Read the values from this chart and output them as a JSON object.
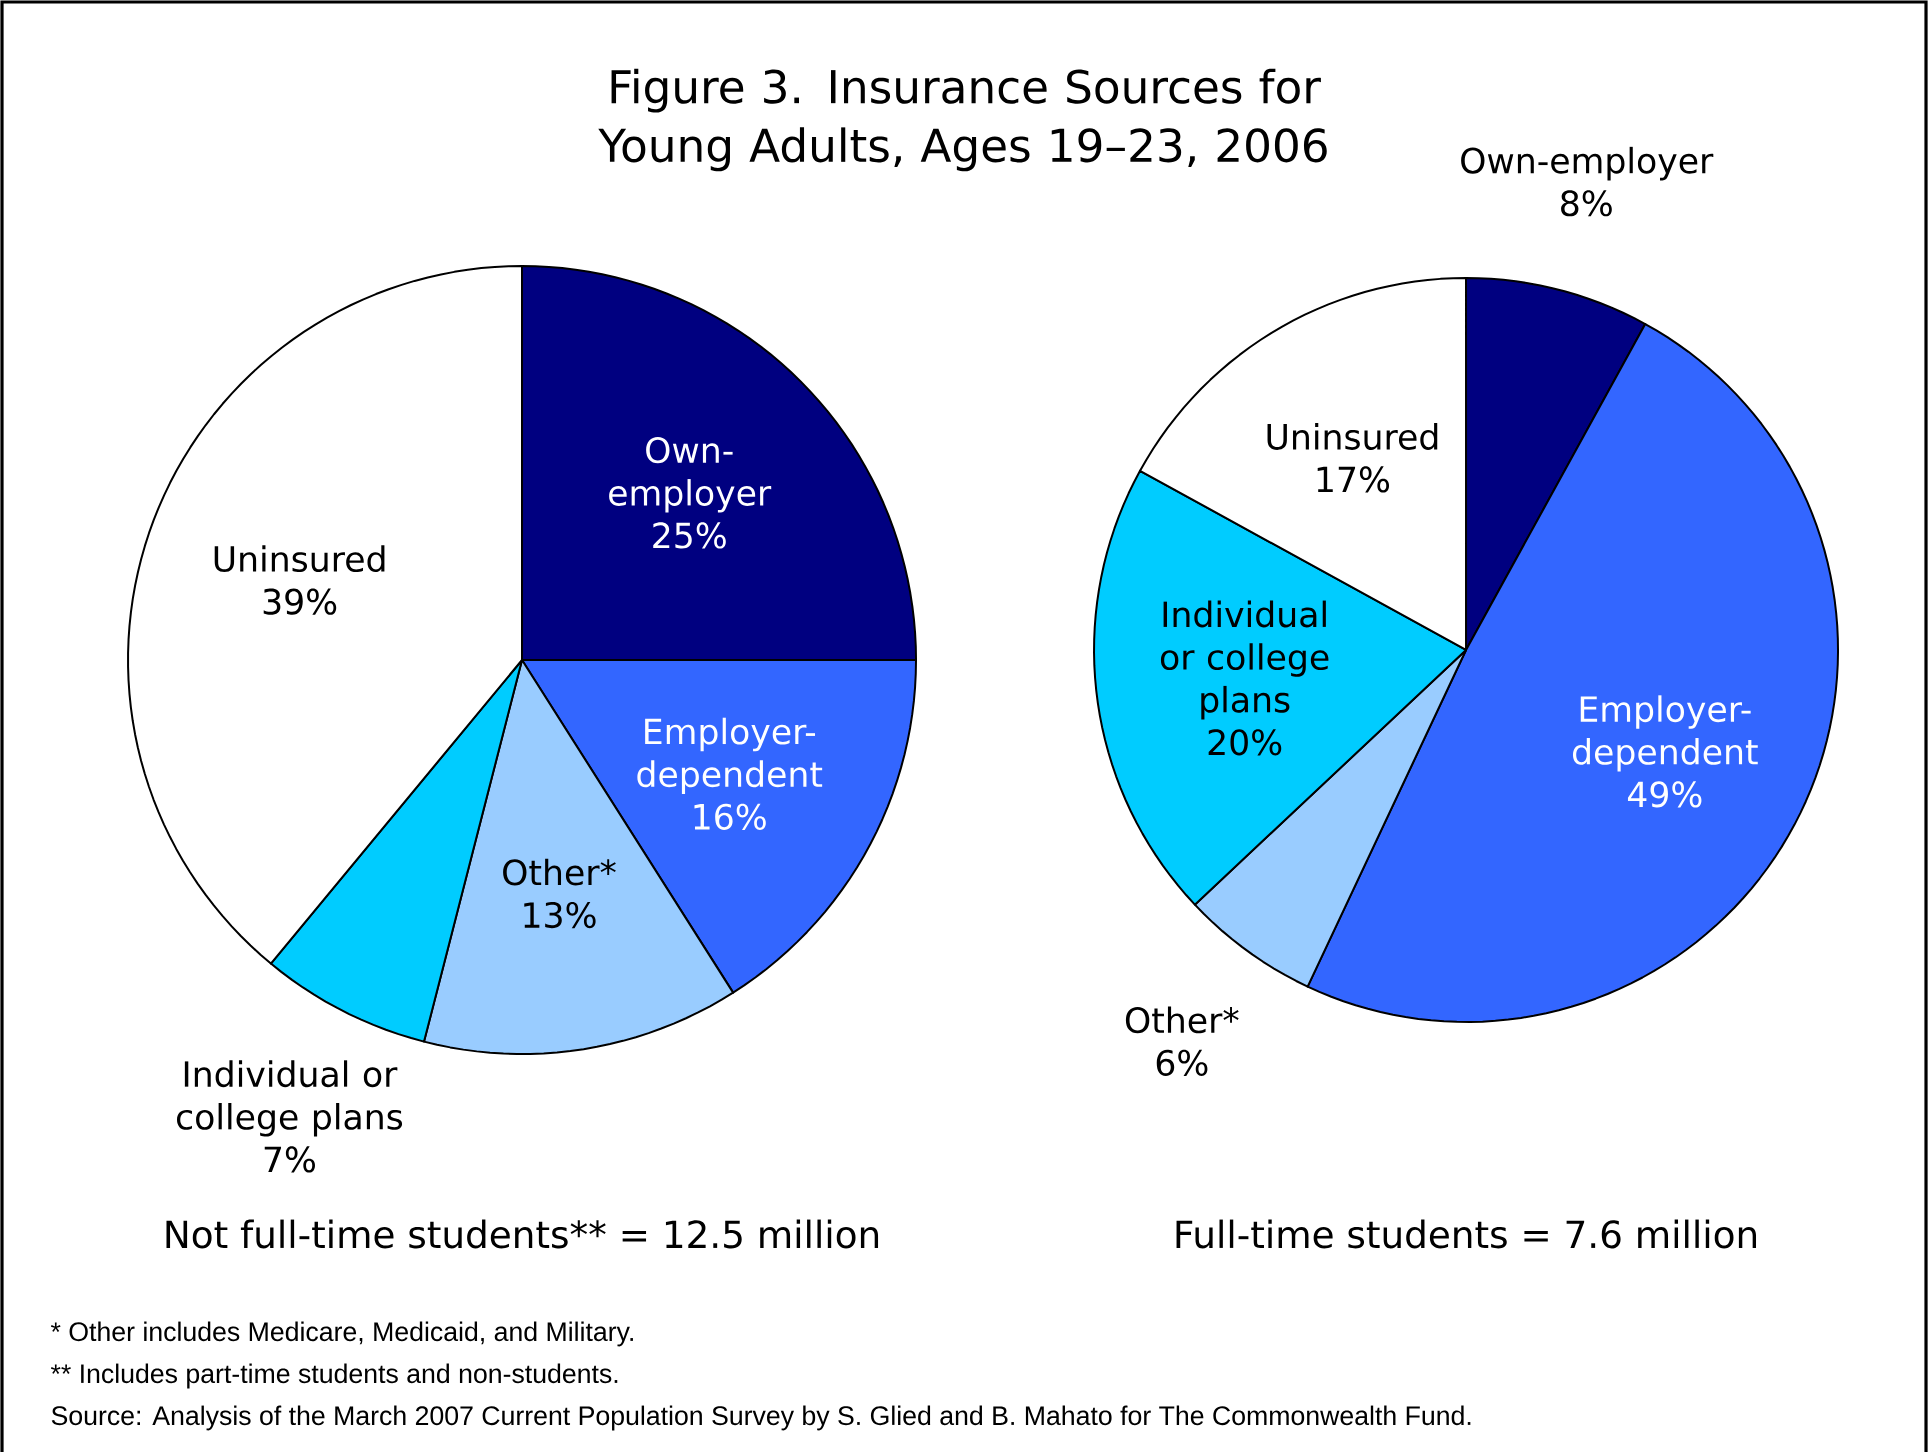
{
  "chart_data": [
    {
      "type": "pie",
      "title": "Figure 3. Insurance Sources for Young Adults, Ages 19–23, 2006",
      "categories": [
        "Own-employer",
        "Employer-dependent",
        "Other*",
        "Individual or college plans",
        "Uninsured"
      ],
      "values": [
        25,
        16,
        13,
        7,
        39
      ],
      "value_labels": [
        "25%",
        "16%",
        "13%",
        "7%",
        "39%"
      ],
      "colors": [
        "#000080",
        "#3366ff",
        "#99ccff",
        "#00ccff",
        "#ffffff"
      ],
      "annotations": [
        "Not full-time students** = 12.5 million",
        "* Other includes Medicare, Medicaid, and Military.",
        "** Includes part-time students and non-students.",
        "Source: Analysis of the March 2007 Current Population Survey by S. Glied and B. Mahato for The Commonwealth Fund."
      ]
    },
    {
      "type": "pie",
      "categories": [
        "Own-employer",
        "Employer-dependent",
        "Other*",
        "Individual or college plans",
        "Uninsured"
      ],
      "values": [
        8,
        49,
        6,
        20,
        17
      ],
      "value_labels": [
        "8%",
        "49%",
        "6%",
        "20%",
        "17%"
      ],
      "colors": [
        "#000080",
        "#3366ff",
        "#99ccff",
        "#00ccff",
        "#ffffff"
      ],
      "annotations": [
        "Full-time students = 7.6 million"
      ]
    }
  ]
}
